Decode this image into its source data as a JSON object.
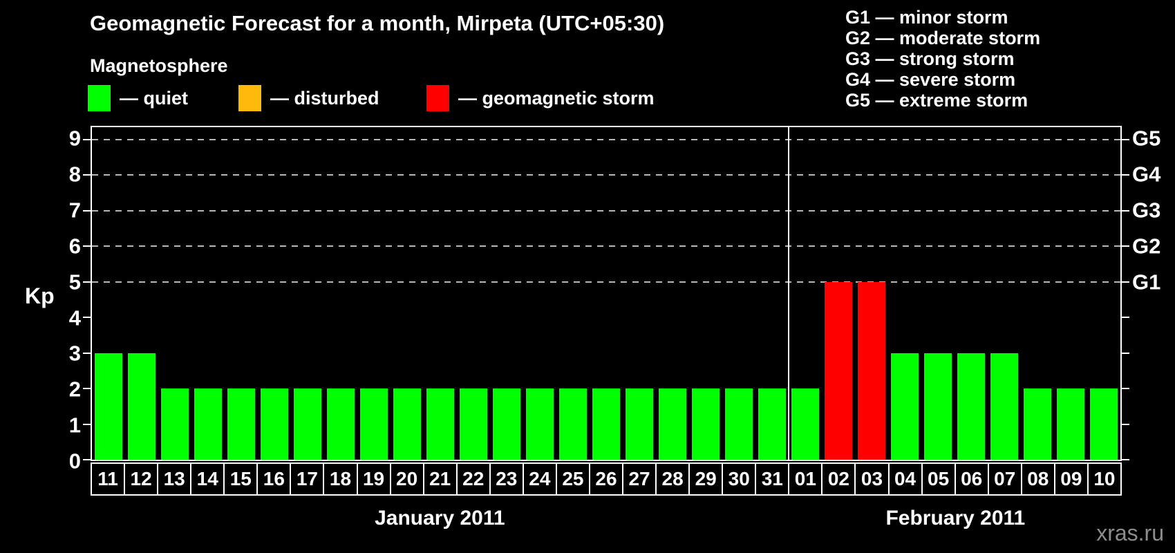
{
  "title": "Geomagnetic Forecast for a month, Mirpeta (UTC+05:30)",
  "legend": {
    "heading": "Magnetosphere",
    "items": [
      {
        "label": "— quiet",
        "level": "quiet",
        "color": "#00ff00"
      },
      {
        "label": "— disturbed",
        "level": "disturbed",
        "color": "#ffb90a"
      },
      {
        "label": "— geomagnetic storm",
        "level": "storm",
        "color": "#ff0000"
      }
    ]
  },
  "storm_scale_legend": [
    "G1 — minor storm",
    "G2 — moderate storm",
    "G3 — strong storm",
    "G4 — severe storm",
    "G5 — extreme storm"
  ],
  "watermark": "xras.ru",
  "chart_data": {
    "type": "bar",
    "ylabel": "Kp",
    "ylim": [
      0,
      9.35
    ],
    "yticks": [
      0,
      1,
      2,
      3,
      4,
      5,
      6,
      7,
      8,
      9
    ],
    "gridlines": [
      5,
      6,
      7,
      8,
      9
    ],
    "right_tick_labels": {
      "5": "G1",
      "6": "G2",
      "7": "G3",
      "8": "G4",
      "9": "G5"
    },
    "colors": {
      "quiet": "#00ff00",
      "disturbed": "#ffb90a",
      "storm": "#ff0000"
    },
    "grid_color": "#b8b8b8",
    "groups": [
      {
        "label": "January 2011",
        "days": [
          {
            "day": "11",
            "kp": 3,
            "level": "quiet"
          },
          {
            "day": "12",
            "kp": 3,
            "level": "quiet"
          },
          {
            "day": "13",
            "kp": 2,
            "level": "quiet"
          },
          {
            "day": "14",
            "kp": 2,
            "level": "quiet"
          },
          {
            "day": "15",
            "kp": 2,
            "level": "quiet"
          },
          {
            "day": "16",
            "kp": 2,
            "level": "quiet"
          },
          {
            "day": "17",
            "kp": 2,
            "level": "quiet"
          },
          {
            "day": "18",
            "kp": 2,
            "level": "quiet"
          },
          {
            "day": "19",
            "kp": 2,
            "level": "quiet"
          },
          {
            "day": "20",
            "kp": 2,
            "level": "quiet"
          },
          {
            "day": "21",
            "kp": 2,
            "level": "quiet"
          },
          {
            "day": "22",
            "kp": 2,
            "level": "quiet"
          },
          {
            "day": "23",
            "kp": 2,
            "level": "quiet"
          },
          {
            "day": "24",
            "kp": 2,
            "level": "quiet"
          },
          {
            "day": "25",
            "kp": 2,
            "level": "quiet"
          },
          {
            "day": "26",
            "kp": 2,
            "level": "quiet"
          },
          {
            "day": "27",
            "kp": 2,
            "level": "quiet"
          },
          {
            "day": "28",
            "kp": 2,
            "level": "quiet"
          },
          {
            "day": "29",
            "kp": 2,
            "level": "quiet"
          },
          {
            "day": "30",
            "kp": 2,
            "level": "quiet"
          },
          {
            "day": "31",
            "kp": 2,
            "level": "quiet"
          }
        ]
      },
      {
        "label": "February 2011",
        "days": [
          {
            "day": "01",
            "kp": 2,
            "level": "quiet"
          },
          {
            "day": "02",
            "kp": 5,
            "level": "storm"
          },
          {
            "day": "03",
            "kp": 5,
            "level": "storm"
          },
          {
            "day": "04",
            "kp": 3,
            "level": "quiet"
          },
          {
            "day": "05",
            "kp": 3,
            "level": "quiet"
          },
          {
            "day": "06",
            "kp": 3,
            "level": "quiet"
          },
          {
            "day": "07",
            "kp": 3,
            "level": "quiet"
          },
          {
            "day": "08",
            "kp": 2,
            "level": "quiet"
          },
          {
            "day": "09",
            "kp": 2,
            "level": "quiet"
          },
          {
            "day": "10",
            "kp": 2,
            "level": "quiet"
          }
        ]
      }
    ]
  }
}
